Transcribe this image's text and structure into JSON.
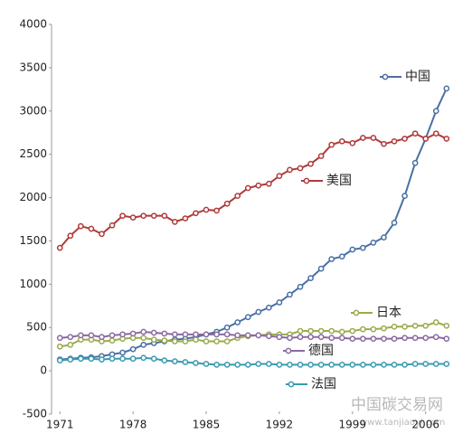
{
  "chart_data": {
    "type": "line",
    "x": [
      1971,
      1972,
      1973,
      1974,
      1975,
      1976,
      1977,
      1978,
      1979,
      1980,
      1981,
      1982,
      1983,
      1984,
      1985,
      1986,
      1987,
      1988,
      1989,
      1990,
      1991,
      1992,
      1993,
      1994,
      1995,
      1996,
      1997,
      1998,
      1999,
      2000,
      2001,
      2002,
      2003,
      2004,
      2005,
      2006,
      2007,
      2008
    ],
    "xlim": [
      1970.2,
      2009.4
    ],
    "xticks": [
      1971,
      1978,
      1985,
      1992,
      1999,
      2006
    ],
    "ylim": [
      -500,
      4000
    ],
    "yticks": [
      -500,
      0,
      500,
      1000,
      1500,
      2000,
      2500,
      3000,
      3500,
      4000
    ],
    "series": [
      {
        "name": "中国",
        "color": "#4a6fa5",
        "values": [
          130,
          140,
          150,
          155,
          170,
          190,
          210,
          250,
          300,
          320,
          340,
          360,
          370,
          390,
          420,
          450,
          500,
          560,
          620,
          680,
          730,
          790,
          880,
          970,
          1070,
          1180,
          1290,
          1320,
          1400,
          1420,
          1480,
          1540,
          1710,
          2020,
          2400,
          2680,
          3000,
          3260
        ]
      },
      {
        "name": "美国",
        "color": "#b03a3a",
        "values": [
          1420,
          1560,
          1670,
          1640,
          1580,
          1680,
          1790,
          1770,
          1790,
          1790,
          1790,
          1720,
          1760,
          1820,
          1860,
          1850,
          1930,
          2020,
          2110,
          2140,
          2160,
          2250,
          2320,
          2340,
          2390,
          2480,
          2610,
          2650,
          2630,
          2690,
          2690,
          2620,
          2650,
          2680,
          2740,
          2680,
          2740,
          2680
        ]
      },
      {
        "name": "日本",
        "color": "#9aab4c",
        "values": [
          280,
          300,
          360,
          360,
          340,
          350,
          370,
          380,
          380,
          360,
          350,
          340,
          340,
          360,
          340,
          340,
          340,
          380,
          400,
          410,
          420,
          420,
          420,
          460,
          460,
          460,
          460,
          450,
          460,
          480,
          480,
          490,
          510,
          510,
          520,
          520,
          560,
          520
        ]
      },
      {
        "name": "德国",
        "color": "#8a6aa0",
        "values": [
          380,
          390,
          410,
          410,
          390,
          410,
          420,
          430,
          450,
          440,
          430,
          420,
          420,
          420,
          420,
          420,
          420,
          410,
          410,
          410,
          400,
          390,
          380,
          390,
          390,
          390,
          380,
          380,
          370,
          370,
          370,
          370,
          370,
          380,
          380,
          380,
          390,
          370
        ]
      },
      {
        "name": "法国",
        "color": "#3a9ab0",
        "values": [
          120,
          130,
          140,
          140,
          130,
          140,
          140,
          140,
          150,
          140,
          120,
          110,
          100,
          90,
          80,
          70,
          70,
          70,
          70,
          80,
          80,
          70,
          70,
          70,
          70,
          70,
          70,
          70,
          70,
          70,
          70,
          70,
          70,
          70,
          80,
          80,
          80,
          80
        ]
      }
    ],
    "watermark": "中国碳交易网",
    "watermark_url": "www.tanjiaoyi.com"
  }
}
